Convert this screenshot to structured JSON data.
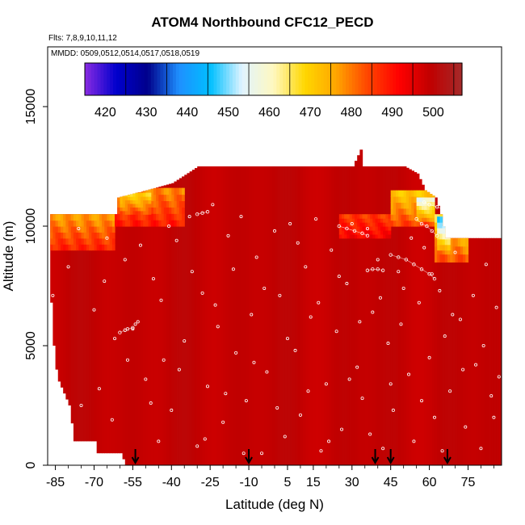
{
  "chart_data": {
    "type": "heatmap",
    "title": "ATOM4 Northbound CFC12_PECD",
    "flights_note": "Flts: 7,8,9,10,11,12",
    "dates_note": "MMDD: 0509,0512,0514,0517,0518,0519",
    "xlabel": "Latitude (deg N)",
    "ylabel": "Altitude (m)",
    "xlim": [
      -88,
      88
    ],
    "ylim": [
      0,
      17500
    ],
    "x_ticks": [
      -85,
      -70,
      -55,
      -40,
      -25,
      -10,
      5,
      15,
      30,
      45,
      60,
      75
    ],
    "y_ticks": [
      0,
      5000,
      10000,
      15000
    ],
    "colorbar": {
      "min": 415,
      "max": 507,
      "ticks": [
        420,
        430,
        440,
        450,
        460,
        470,
        480,
        490,
        500
      ],
      "colors": [
        "#8a2be2",
        "#0000cd",
        "#00008b",
        "#1e90ff",
        "#00bfff",
        "#e0f4ff",
        "#fff8c0",
        "#ffd700",
        "#ffa500",
        "#ff4500",
        "#ff0000",
        "#c00000",
        "#a52a2a"
      ]
    },
    "field": {
      "background_value": 499,
      "surface_top_altitude_by_lat": [
        [
          -87,
          6800
        ],
        [
          -86,
          5000
        ],
        [
          -85,
          4000
        ],
        [
          -84,
          3500
        ],
        [
          -82,
          3000
        ],
        [
          -80,
          2500
        ],
        [
          -78,
          1000
        ],
        [
          -70,
          1000
        ],
        [
          -69,
          500
        ],
        [
          -60,
          500
        ],
        [
          -58,
          0
        ],
        [
          88,
          0
        ]
      ],
      "top_by_lat": [
        [
          -87,
          10500
        ],
        [
          -62,
          10500
        ],
        [
          -61,
          11200
        ],
        [
          -50,
          11500
        ],
        [
          -40,
          11800
        ],
        [
          -30,
          12500
        ],
        [
          30,
          12500
        ],
        [
          33,
          13200
        ],
        [
          34,
          12500
        ],
        [
          50,
          12500
        ],
        [
          55,
          12200
        ],
        [
          58,
          11500
        ],
        [
          62,
          11200
        ],
        [
          64,
          10500
        ],
        [
          66,
          9500
        ],
        [
          88,
          9500
        ]
      ],
      "low_value_layers": [
        {
          "lat": [
            -87,
            -62
          ],
          "alt": [
            9000,
            10500
          ],
          "value": 476
        },
        {
          "lat": [
            -62,
            -35
          ],
          "alt": [
            10000,
            11600
          ],
          "value": 478
        },
        {
          "lat": [
            -60,
            -48
          ],
          "alt": [
            10500,
            11400
          ],
          "value": 468
        },
        {
          "lat": [
            25,
            45
          ],
          "alt": [
            9500,
            10500
          ],
          "value": 485
        },
        {
          "lat": [
            45,
            62
          ],
          "alt": [
            10000,
            11500
          ],
          "value": 470
        },
        {
          "lat": [
            55,
            62
          ],
          "alt": [
            10200,
            11200
          ],
          "value": 455
        },
        {
          "lat": [
            62,
            75
          ],
          "alt": [
            8500,
            10500
          ],
          "value": 466
        },
        {
          "lat": [
            63,
            68
          ],
          "alt": [
            9000,
            10400
          ],
          "value": 446
        }
      ]
    },
    "flight_tracks": {
      "description_points": "sample locations (lat, alt m)",
      "points": [
        [
          -80,
          8300
        ],
        [
          -75,
          2500
        ],
        [
          -70,
          6500
        ],
        [
          -68,
          3200
        ],
        [
          -65,
          9500
        ],
        [
          -62,
          5300
        ],
        [
          -58,
          8600
        ],
        [
          -55,
          5700
        ],
        [
          -54,
          5900
        ],
        [
          -53,
          6000
        ],
        [
          -50,
          3600
        ],
        [
          -47,
          7800
        ],
        [
          -45,
          1000
        ],
        [
          -43,
          4400
        ],
        [
          -40,
          2300
        ],
        [
          -38,
          9400
        ],
        [
          -35,
          5200
        ],
        [
          -33,
          10400
        ],
        [
          -30,
          800
        ],
        [
          -28,
          7200
        ],
        [
          -26,
          3300
        ],
        [
          -24,
          10900
        ],
        [
          -22,
          5800
        ],
        [
          -20,
          1800
        ],
        [
          -18,
          9600
        ],
        [
          -15,
          4700
        ],
        [
          -13,
          10400
        ],
        [
          -11,
          2700
        ],
        [
          -9,
          6300
        ],
        [
          -7,
          8700
        ],
        [
          -5,
          500
        ],
        [
          -3,
          3900
        ],
        [
          0,
          9800
        ],
        [
          2,
          7100
        ],
        [
          4,
          1200
        ],
        [
          6,
          10100
        ],
        [
          8,
          4800
        ],
        [
          10,
          2100
        ],
        [
          12,
          8300
        ],
        [
          14,
          6200
        ],
        [
          16,
          10300
        ],
        [
          18,
          600
        ],
        [
          20,
          3400
        ],
        [
          22,
          9000
        ],
        [
          24,
          5600
        ],
        [
          26,
          1500
        ],
        [
          28,
          7600
        ],
        [
          30,
          10100
        ],
        [
          32,
          4100
        ],
        [
          34,
          2800
        ],
        [
          36,
          9900
        ],
        [
          38,
          6400
        ],
        [
          40,
          8600
        ],
        [
          42,
          700
        ],
        [
          44,
          5100
        ],
        [
          46,
          2300
        ],
        [
          48,
          8100
        ],
        [
          50,
          7400
        ],
        [
          52,
          3800
        ],
        [
          54,
          1000
        ],
        [
          56,
          6800
        ],
        [
          58,
          9100
        ],
        [
          60,
          4500
        ],
        [
          62,
          2000
        ],
        [
          64,
          7300
        ],
        [
          66,
          5400
        ],
        [
          68,
          3100
        ],
        [
          70,
          8900
        ],
        [
          72,
          6100
        ],
        [
          74,
          1600
        ],
        [
          76,
          9700
        ],
        [
          78,
          4200
        ],
        [
          80,
          700
        ],
        [
          82,
          8400
        ],
        [
          84,
          2900
        ],
        [
          86,
          6600
        ],
        [
          87,
          3700
        ],
        [
          -86,
          7100
        ],
        [
          -84,
          1400
        ],
        [
          -76,
          9900
        ],
        [
          -72,
          600
        ],
        [
          -66,
          7700
        ],
        [
          -63,
          1900
        ],
        [
          -57,
          4400
        ],
        [
          -52,
          9200
        ],
        [
          -48,
          2600
        ],
        [
          -44,
          6900
        ],
        [
          -41,
          10000
        ],
        [
          -37,
          4000
        ],
        [
          -32,
          8100
        ],
        [
          -27,
          1100
        ],
        [
          -23,
          6700
        ],
        [
          -19,
          3000
        ],
        [
          -16,
          8200
        ],
        [
          -12,
          500
        ],
        [
          -8,
          4300
        ],
        [
          -4,
          7400
        ],
        [
          1,
          2400
        ],
        [
          5,
          5300
        ],
        [
          9,
          9300
        ],
        [
          13,
          3100
        ],
        [
          17,
          6800
        ],
        [
          21,
          1000
        ],
        [
          25,
          7900
        ],
        [
          29,
          3600
        ],
        [
          33,
          6000
        ],
        [
          37,
          1300
        ],
        [
          41,
          7000
        ],
        [
          45,
          3400
        ],
        [
          49,
          5900
        ],
        [
          53,
          9500
        ],
        [
          57,
          2700
        ],
        [
          61,
          8000
        ],
        [
          65,
          600
        ],
        [
          69,
          6300
        ],
        [
          73,
          4000
        ],
        [
          77,
          7100
        ],
        [
          81,
          5000
        ],
        [
          85,
          2000
        ]
      ],
      "paths": [
        [
          [
            -62,
            11200
          ],
          [
            -58,
            11350
          ],
          [
            -55,
            11450
          ],
          [
            -52,
            11500
          ]
        ],
        [
          [
            -30,
            10500
          ],
          [
            -28,
            10550
          ],
          [
            -26,
            10600
          ]
        ],
        [
          [
            -60,
            5550
          ],
          [
            -58,
            5650
          ],
          [
            -57,
            5700
          ],
          [
            -55,
            5750
          ]
        ],
        [
          [
            25,
            10000
          ],
          [
            28,
            9900
          ],
          [
            31,
            9800
          ],
          [
            34,
            9700
          ],
          [
            36,
            9600
          ]
        ],
        [
          [
            45,
            8800
          ],
          [
            48,
            8700
          ],
          [
            51,
            8600
          ],
          [
            54,
            8400
          ],
          [
            57,
            8200
          ],
          [
            60,
            8000
          ],
          [
            62,
            7800
          ]
        ],
        [
          [
            36,
            8150
          ],
          [
            38,
            8200
          ],
          [
            40,
            8200
          ],
          [
            42,
            8150
          ]
        ],
        [
          [
            55,
            10300
          ],
          [
            57,
            10100
          ],
          [
            59,
            10000
          ],
          [
            61,
            9800
          ],
          [
            63,
            9600
          ]
        ],
        [
          [
            58,
            11000
          ],
          [
            60,
            10900
          ],
          [
            63,
            10800
          ],
          [
            66,
            10700
          ]
        ]
      ]
    },
    "arrows_lat": [
      -54,
      -10,
      39,
      45,
      67
    ]
  }
}
